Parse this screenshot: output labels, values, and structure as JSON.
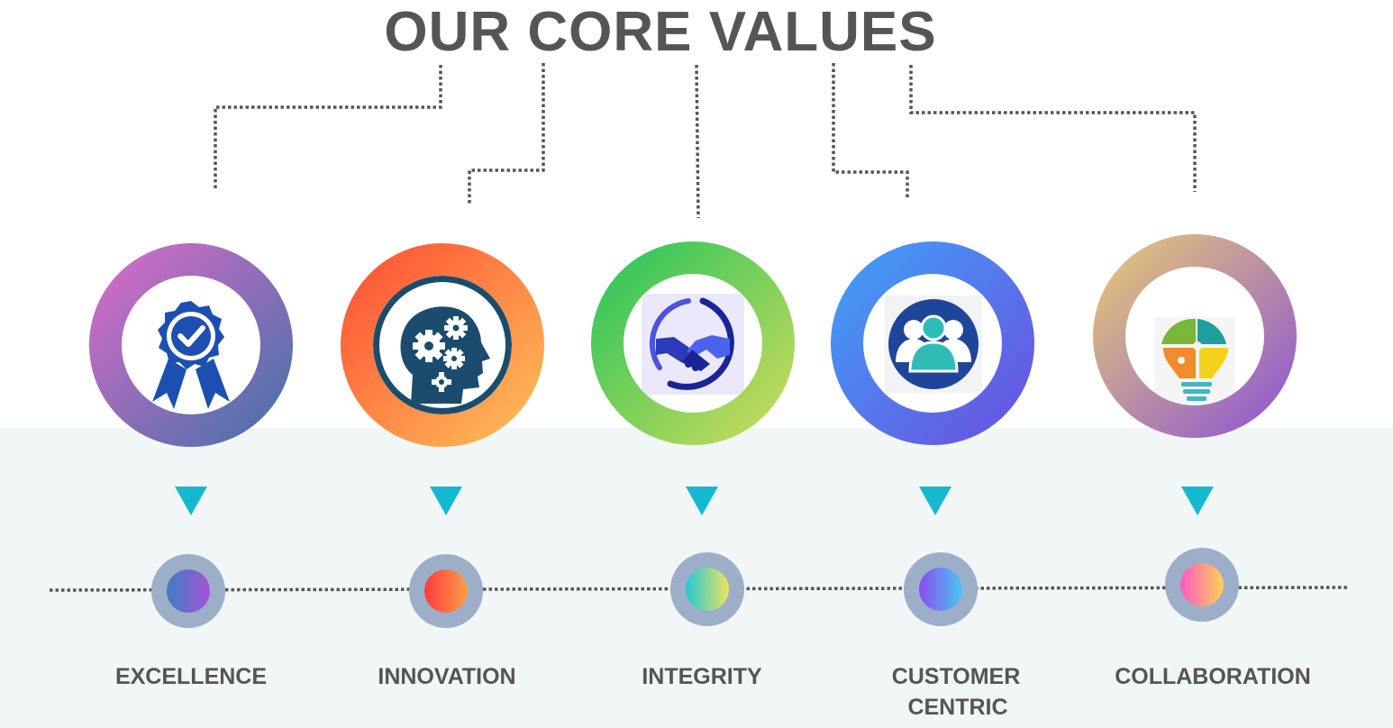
{
  "title": "OUR CORE VALUES",
  "values": [
    {
      "label": "EXCELLENCE",
      "icon": "award-badge-icon",
      "ring_colors": [
        "#de6bc8",
        "#3f71a8"
      ],
      "dot_colors": [
        "#3d7fc0",
        "#a553d8"
      ]
    },
    {
      "label": "INNOVATION",
      "icon": "brain-gears-icon",
      "ring_colors": [
        "#ff4b32",
        "#ffc35a"
      ],
      "dot_colors": [
        "#ff3d3d",
        "#ff9d48"
      ]
    },
    {
      "label": "INTEGRITY",
      "icon": "handshake-icon",
      "ring_colors": [
        "#22c45c",
        "#d4dc5c"
      ],
      "dot_colors": [
        "#22c8d6",
        "#f0e45e"
      ]
    },
    {
      "label": "CUSTOMER CENTRIC",
      "label_lines": [
        "CUSTOMER",
        "CENTRIC"
      ],
      "icon": "customer-group-icon",
      "ring_colors": [
        "#3fa3f7",
        "#6b4de0"
      ],
      "dot_colors": [
        "#8a4cf0",
        "#4ac6f2"
      ]
    },
    {
      "label": "COLLABORATION",
      "icon": "puzzle-lightbulb-icon",
      "ring_colors": [
        "#e9cc73",
        "#8a52d6"
      ],
      "dot_colors": [
        "#ff5ac0",
        "#ffd25a"
      ]
    }
  ],
  "colors": {
    "title": "#555555",
    "label": "#555555",
    "band": "#f1f7f6",
    "triangle": "#15b9cf",
    "timeline": "#555555",
    "dot_ring": "#9daec9"
  }
}
